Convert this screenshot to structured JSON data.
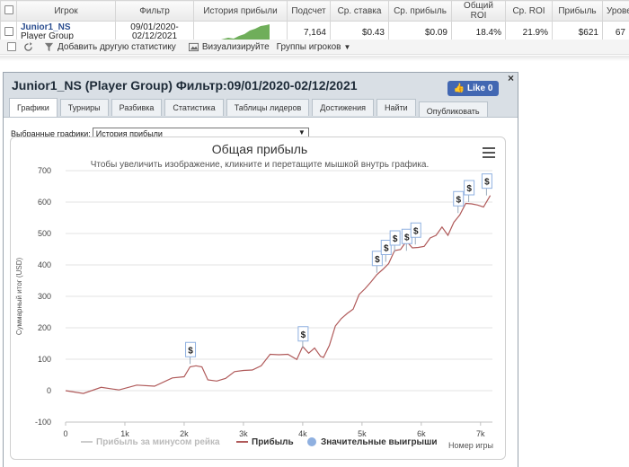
{
  "stats_table": {
    "headers": [
      "Игрок",
      "Фильтр",
      "История прибыли",
      "Подсчет",
      "Ср. ставка",
      "Ср. прибыль",
      "Общий ROI",
      "Ср. ROI",
      "Прибыль",
      "Уровень"
    ],
    "row": {
      "player_name": "Junior1_NS",
      "player_group": "Player Group",
      "filter_line1": "09/01/2020-",
      "filter_line2": "02/12/2021",
      "count": "7,164",
      "avg_stake": "$0.43",
      "avg_profit": "$0.09",
      "total_roi": "18.4%",
      "avg_roi": "21.9%",
      "profit": "$621",
      "level": "67"
    }
  },
  "toolbar": {
    "add_stat_label": "Добавить другую статистику",
    "visualize_label": "Визуализируйте",
    "groups_label": "Группы игроков"
  },
  "dialog": {
    "title": "Junior1_NS (Player Group) Фильтр:09/01/2020-02/12/2021",
    "like_label": "Like 0",
    "close_glyph": "×",
    "tabs": [
      "Графики",
      "Турниры",
      "Разбивка",
      "Статистика",
      "Таблицы лидеров",
      "Достижения",
      "Найти"
    ],
    "publish_tab": "Опубликовать",
    "selected_graphs_label": "Выбранные графики:",
    "selected_graph_value": "История прибыли"
  },
  "chart_data": {
    "type": "line",
    "title": "Общая прибыль",
    "subtitle": "Чтобы увеличить изображение, кликните и перетащите мышкой внутрь графика.",
    "xlabel": "Номер игры",
    "ylabel": "Суммарный итог (USD)",
    "xlim": [
      0,
      7200
    ],
    "ylim": [
      -100,
      700
    ],
    "x_ticks": [
      "0",
      "1k",
      "2k",
      "3k",
      "4k",
      "5k",
      "6k",
      "7k"
    ],
    "y_ticks": [
      "700",
      "600",
      "500",
      "400",
      "300",
      "200",
      "100",
      "0",
      "-100"
    ],
    "grid": true,
    "series": [
      {
        "name": "Прибыль",
        "color": "#b05a5a",
        "x": [
          0,
          300,
          600,
          900,
          1200,
          1500,
          1800,
          2000,
          2100,
          2200,
          2300,
          2400,
          2550,
          2700,
          2850,
          3000,
          3150,
          3300,
          3450,
          3600,
          3750,
          3900,
          4000,
          4100,
          4200,
          4300,
          4350,
          4450,
          4550,
          4650,
          4750,
          4850,
          4950,
          5050,
          5150,
          5250,
          5350,
          5450,
          5550,
          5650,
          5750,
          5850,
          5950,
          6050,
          6150,
          6250,
          6350,
          6450,
          6550,
          6650,
          6750,
          6850,
          6950,
          7050,
          7164
        ],
        "y": [
          0,
          -3,
          5,
          8,
          12,
          20,
          35,
          50,
          70,
          85,
          70,
          40,
          25,
          45,
          55,
          70,
          60,
          85,
          110,
          120,
          110,
          105,
          135,
          125,
          130,
          115,
          100,
          150,
          200,
          235,
          240,
          265,
          300,
          330,
          340,
          375,
          380,
          410,
          440,
          455,
          470,
          460,
          450,
          465,
          480,
          500,
          515,
          500,
          530,
          565,
          590,
          600,
          585,
          590,
          621
        ]
      },
      {
        "name": "Прибыль за минусом рейка",
        "color": "#cccccc",
        "x": [],
        "y": []
      },
      {
        "name": "Значительные выигрыши",
        "color": "#8fb0e0",
        "type": "marker",
        "marker_glyph": "$",
        "x": [
          2100,
          4000,
          5250,
          5400,
          5550,
          5750,
          5900,
          6620,
          6800,
          7100
        ],
        "y": [
          85,
          135,
          375,
          410,
          440,
          445,
          465,
          565,
          600,
          621
        ]
      }
    ],
    "legend": [
      "Прибыль за минусом рейка",
      "Прибыль",
      "Значительные выигрыши"
    ],
    "legend_position": "bottom"
  }
}
